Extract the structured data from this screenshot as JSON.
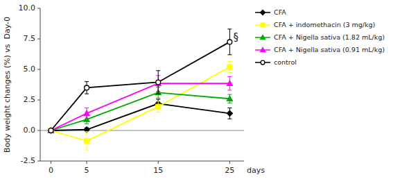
{
  "chart_data": {
    "type": "line",
    "xlabel": "days",
    "ylabel": "Body weight changes (%) vs  Day-0",
    "x": [
      0,
      5,
      15,
      25
    ],
    "series": [
      {
        "name": "CFA",
        "color": "#000000",
        "marker": "diamond",
        "line_style": "solid",
        "values": [
          0,
          0.07,
          2.2,
          1.4
        ],
        "errors": [
          0.0,
          0.15,
          0.35,
          0.45
        ]
      },
      {
        "name": "CFA + indomethacin (3 mg/kg)",
        "color": "#FFFF00",
        "marker": "square",
        "line_style": "solid",
        "values": [
          0,
          -0.85,
          1.95,
          5.2
        ],
        "errors": [
          0.0,
          0.75,
          0.45,
          0.45
        ]
      },
      {
        "name": "CFA + Nigella sativa (1.82 mL/kg)",
        "color": "#00AA00",
        "marker": "triangle",
        "line_style": "solid",
        "values": [
          0,
          0.9,
          3.1,
          2.6
        ],
        "errors": [
          0.0,
          0.35,
          0.45,
          0.35
        ]
      },
      {
        "name": "CFA + Nigella sativa (0.91 mL/kg)",
        "color": "#FF00FF",
        "marker": "triangle",
        "line_style": "solid",
        "values": [
          0,
          1.4,
          3.85,
          3.85
        ],
        "errors": [
          0.0,
          0.45,
          0.65,
          0.55
        ]
      },
      {
        "name": "control",
        "color": "#000000",
        "marker": "open-circle",
        "line_style": "solid",
        "values": [
          0,
          3.5,
          3.95,
          7.25
        ],
        "errors": [
          0.0,
          0.5,
          0.95,
          1.05
        ]
      }
    ],
    "xlim": [
      -1.5,
      27
    ],
    "ylim": [
      -2.5,
      10.0
    ],
    "xticks": [
      0,
      5,
      15,
      25
    ],
    "yticks": [
      -2.5,
      {
        "value": 0.0,
        "label": "0.0"
      },
      2.5,
      {
        "value": 5.0,
        "label": "5.0"
      },
      7.5,
      {
        "value": 10.0,
        "label": "10.0"
      }
    ],
    "hline": 0,
    "annotations": [
      {
        "text": "§",
        "x": 25.5,
        "y": 7.6
      }
    ],
    "grid": false,
    "legend": "right"
  }
}
